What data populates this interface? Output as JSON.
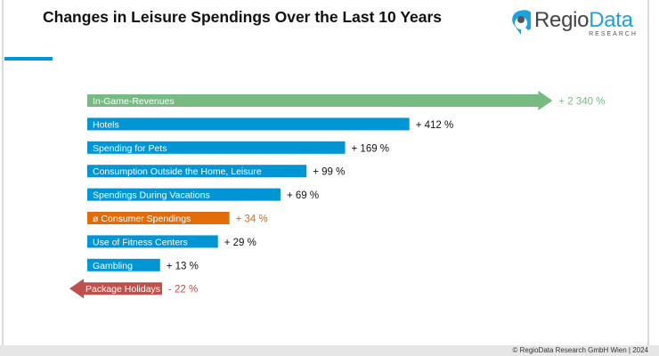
{
  "title": "Changes in Leisure Spendings Over the Last 10 Years",
  "logo": {
    "name": "RegioData",
    "part1": "Regio",
    "part2": "Data",
    "sub": "RESEARCH",
    "icon": "location-pin-icon"
  },
  "footer": "© RegioData Research GmbH Wien | 2024",
  "colors": {
    "default": "#0096d6",
    "highlight": "#77bb82",
    "average": "#e36c0a",
    "negative": "#c0504d",
    "accent": "#0096d6"
  },
  "chart_data": {
    "type": "bar",
    "orientation": "horizontal",
    "scale": "log",
    "title": "Changes in Leisure Spendings Over the Last 10 Years",
    "unit": "%",
    "categories": [
      "In-Game-Revenues",
      "Hotels",
      "Spending for Pets",
      "Consumption Outside the Home, Leisure",
      "Spendings During Vacations",
      "ø Consumer Spendings",
      "Use of Fitness Centers",
      "Gambling",
      "Package Holidays"
    ],
    "values": [
      2340,
      412,
      169,
      99,
      69,
      34,
      29,
      13,
      -22
    ],
    "labels": [
      "+ 2 340 %",
      "+ 412 %",
      "+ 169 %",
      "+ 99 %",
      "+ 69 %",
      "+ 34 %",
      "+ 29 %",
      "+ 13 %",
      "- 22 %"
    ],
    "bar_styles": [
      "highlight",
      "default",
      "default",
      "default",
      "default",
      "average",
      "default",
      "default",
      "negative"
    ]
  }
}
